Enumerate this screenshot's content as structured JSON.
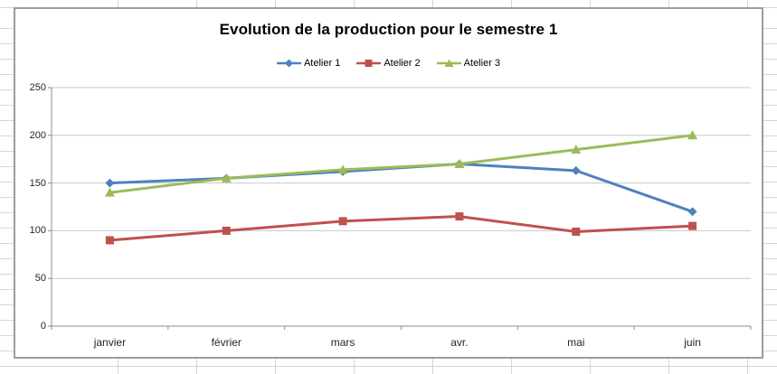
{
  "chart_data": {
    "type": "line",
    "title": "Evolution de la production pour le semestre 1",
    "categories": [
      "janvier",
      "février",
      "mars",
      "avr.",
      "mai",
      "juin"
    ],
    "series": [
      {
        "name": "Atelier 1",
        "color": "#4F81BD",
        "marker": "diamond",
        "values": [
          150,
          155,
          162,
          170,
          163,
          120
        ]
      },
      {
        "name": "Atelier 2",
        "color": "#C0504D",
        "marker": "square",
        "values": [
          90,
          100,
          110,
          115,
          99,
          105
        ]
      },
      {
        "name": "Atelier 3",
        "color": "#9BBB59",
        "marker": "triangle",
        "values": [
          140,
          155,
          164,
          170,
          185,
          200
        ]
      }
    ],
    "xlabel": "",
    "ylabel": "",
    "ylim": [
      0,
      250
    ],
    "y_ticks": [
      0,
      50,
      100,
      150,
      200,
      250
    ],
    "grid": true,
    "legend_position": "top",
    "gridline_color": "#c9c9c9",
    "axis_color": "#8c8c8c",
    "label_color": "#262626",
    "chart_background": "#ffffff",
    "chart_border_color": "#9c9c9c",
    "sheet_gridline_color": "#d0d7e5"
  }
}
